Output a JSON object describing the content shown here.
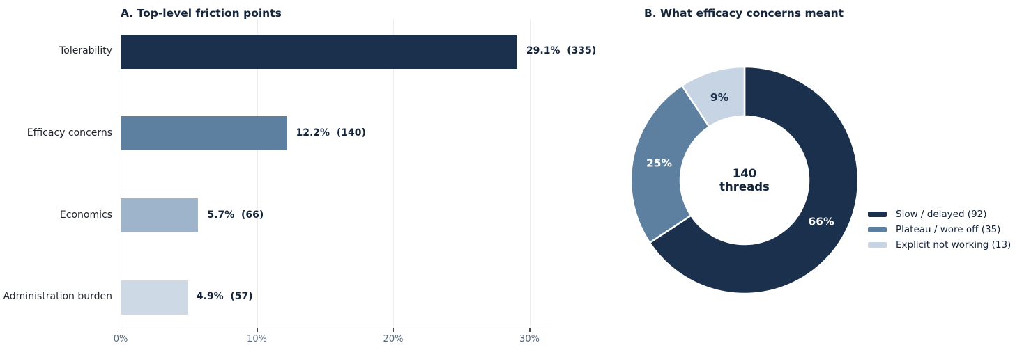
{
  "panel_a": {
    "title": "A. Top-level friction points"
  },
  "panel_b": {
    "title": "B. What efficacy concerns meant",
    "center_label_line1": "140",
    "center_label_line2": "threads"
  },
  "chart_data": [
    {
      "type": "bar",
      "orientation": "horizontal",
      "title": "A. Top-level friction points",
      "categories": [
        "Tolerability",
        "Efficacy concerns",
        "Economics",
        "Administration burden"
      ],
      "values_pct": [
        29.1,
        12.2,
        5.7,
        4.9
      ],
      "counts": [
        335,
        140,
        66,
        57
      ],
      "bar_labels": [
        "29.1%  (335)",
        "12.2%  (140)",
        "5.7%  (66)",
        "4.9%  (57)"
      ],
      "bar_colors": [
        "#1b304d",
        "#5d80a0",
        "#9db4ca",
        "#cdd9e5"
      ],
      "xlabel": "",
      "ylabel": "",
      "xlim": [
        0,
        31.3
      ],
      "x_tick_values": [
        0,
        10,
        20,
        30
      ],
      "x_tick_labels": [
        "0%",
        "10%",
        "20%",
        "30%"
      ],
      "grid": "vertical-light",
      "background": "#ffffff"
    },
    {
      "type": "pie",
      "subtype": "donut",
      "title": "B. What efficacy concerns meant",
      "center_label": "140\nthreads",
      "total": 140,
      "start_angle": "top",
      "direction": "clockwise",
      "slices": [
        {
          "legend_label": "Slow / delayed (92)",
          "value": 92,
          "pct_label": "66%",
          "color": "#1b304d",
          "pct_label_color": "#ffffff"
        },
        {
          "legend_label": "Plateau / wore off (35)",
          "value": 35,
          "pct_label": "25%",
          "color": "#5d80a0",
          "pct_label_color": "#ffffff"
        },
        {
          "legend_label": "Explicit not working (13)",
          "value": 13,
          "pct_label": "9%",
          "color": "#c6d4e4",
          "pct_label_color": "#1b304d"
        }
      ],
      "legend_position": "right"
    }
  ]
}
